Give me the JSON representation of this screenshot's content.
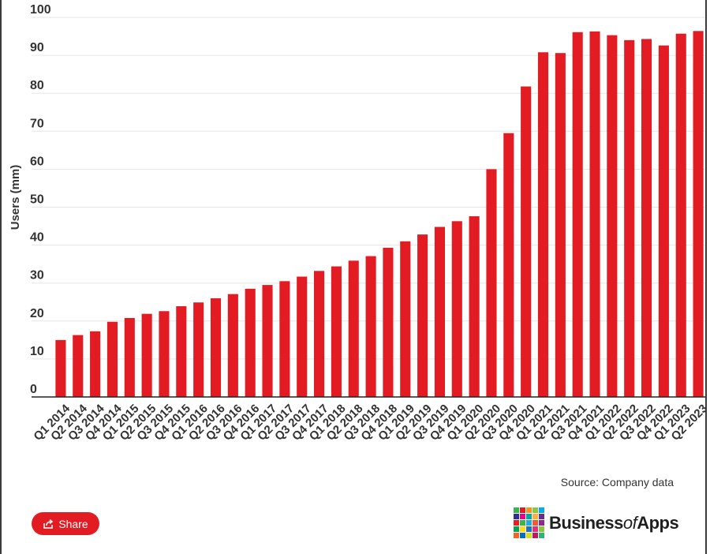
{
  "chart_data": {
    "type": "bar",
    "title": "",
    "xlabel": "",
    "ylabel": "Users (mm)",
    "ylim": [
      0,
      100
    ],
    "yticks": [
      0,
      10,
      20,
      30,
      40,
      50,
      60,
      70,
      80,
      90,
      100
    ],
    "grid": true,
    "color": "#e31c23",
    "categories": [
      "Q1 2014",
      "Q2 2014",
      "Q3 2014",
      "Q4 2014",
      "Q1 2015",
      "Q2 2015",
      "Q3 2015",
      "Q4 2015",
      "Q1 2016",
      "Q2 2016",
      "Q3 2016",
      "Q4 2016",
      "Q1 2017",
      "Q2 2017",
      "Q3 2017",
      "Q4 2017",
      "Q1 2018",
      "Q2 2018",
      "Q3 2018",
      "Q4 2018",
      "Q1 2019",
      "Q2 2019",
      "Q3 2019",
      "Q4 2019",
      "Q1 2020",
      "Q2 2020",
      "Q3 2020",
      "Q4 2020",
      "Q1 2021",
      "Q2 2021",
      "Q3 2021",
      "Q4 2021",
      "Q1 2022",
      "Q2 2022",
      "Q3 2022",
      "Q4 2022",
      "Q1 2023",
      "Q2 2023"
    ],
    "values": [
      15,
      16.3,
      17.3,
      19.8,
      20.8,
      21.9,
      22.6,
      23.9,
      24.9,
      26,
      27.1,
      28.5,
      29.5,
      30.5,
      31.7,
      33.2,
      34.4,
      35.9,
      37.1,
      39.3,
      41,
      42.8,
      44.8,
      46.3,
      47.6,
      60,
      69.5,
      81.8,
      90.8,
      90.6,
      96.1,
      96.3,
      95.3,
      94,
      94.3,
      92.6,
      95.7,
      96.4
    ]
  },
  "source": "Source: Company data",
  "share": {
    "label": "Share",
    "icon": "share-icon"
  },
  "logo": {
    "text_main": "Business",
    "text_of": "of",
    "text_apps": "Apps"
  },
  "logo_colors": [
    "#3bb54a",
    "#e31c23",
    "#f7941d",
    "#8dc63f",
    "#00aeef",
    "#2e3192",
    "#ec008c",
    "#00a99d",
    "#fbb040",
    "#662d91",
    "#ed1c24",
    "#39b54a",
    "#27aae1",
    "#f15a29",
    "#92278f",
    "#00a651",
    "#ffde17",
    "#1c75bc",
    "#ee2a7b",
    "#8cc63f",
    "#f26522",
    "#0072bc",
    "#d7df23",
    "#c2185b",
    "#2bb673"
  ]
}
